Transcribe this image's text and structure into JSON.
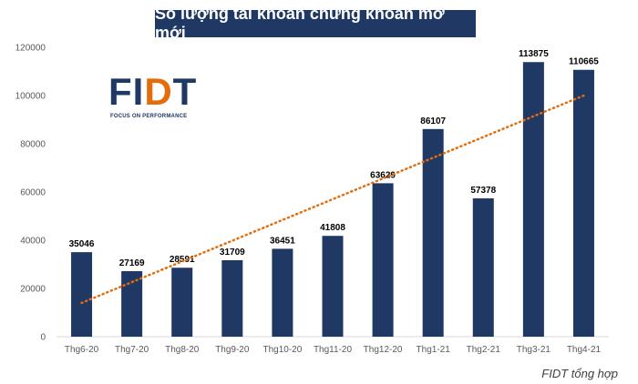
{
  "source_note": "FIDT tổng hợp",
  "logo": {
    "word_left": "FI",
    "word_accent": "D",
    "word_right": "T",
    "tagline": "FOCUS ON PERFORMANCE"
  },
  "colors": {
    "bar": "#1f3864",
    "trend": "#e46c0a",
    "title_bg": "#1f3864"
  },
  "chart_data": {
    "type": "bar",
    "title": "Số lượng tài khoản chứng khoán mở mới",
    "xlabel": "",
    "ylabel": "",
    "categories": [
      "Thg6-20",
      "Thg7-20",
      "Thg8-20",
      "Thg9-20",
      "Thg10-20",
      "Thg11-20",
      "Thg12-20",
      "Thg1-21",
      "Thg2-21",
      "Thg3-21",
      "Thg4-21"
    ],
    "values": [
      35046,
      27169,
      28591,
      31709,
      36451,
      41808,
      63629,
      86107,
      57378,
      113875,
      110665
    ],
    "ylim": [
      0,
      120000
    ],
    "yticks": [
      "0",
      "20000",
      "40000",
      "60000",
      "80000",
      "100000",
      "120000"
    ],
    "trendline": {
      "style": "dotted linear",
      "start": 14000,
      "end": 100000
    },
    "grid": false,
    "legend": "none"
  }
}
